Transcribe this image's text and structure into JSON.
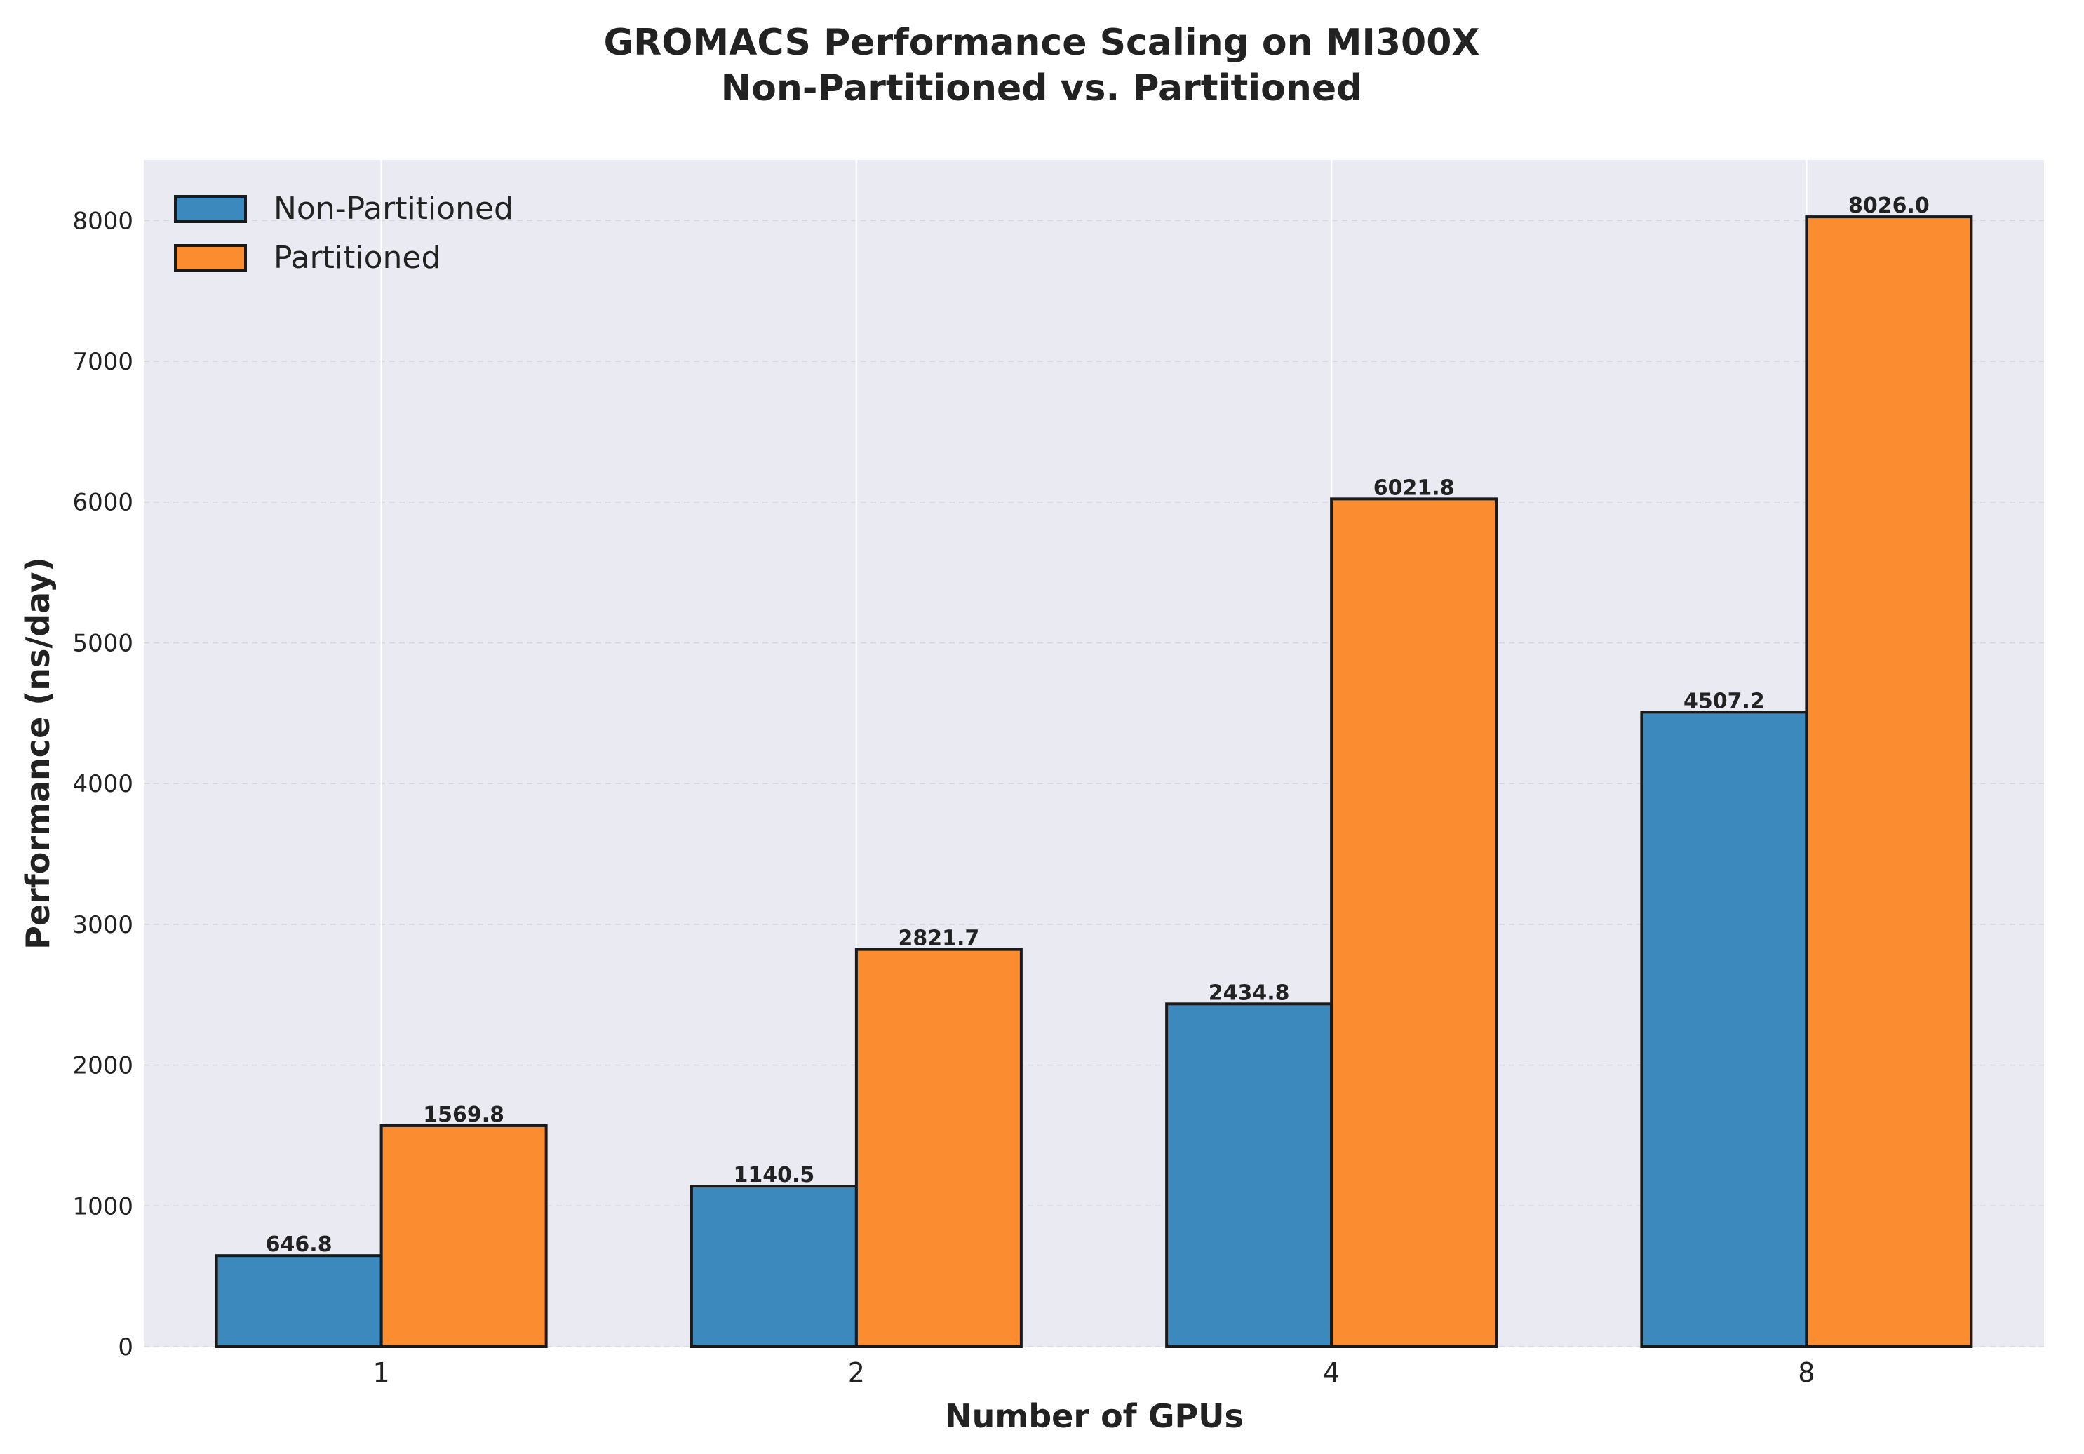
{
  "chart_data": {
    "type": "bar",
    "title_line1": "GROMACS Performance Scaling on MI300X",
    "title_line2": "Non-Partitioned vs. Partitioned",
    "xlabel": "Number of GPUs",
    "ylabel": "Performance (ns/day)",
    "categories": [
      "1",
      "2",
      "4",
      "8"
    ],
    "series": [
      {
        "name": "Non-Partitioned",
        "color": "#3c89bd",
        "values": [
          646.8,
          1140.5,
          2434.8,
          4507.2
        ],
        "labels": [
          "646.8",
          "1140.5",
          "2434.8",
          "4507.2"
        ]
      },
      {
        "name": "Partitioned",
        "color": "#fb8d30",
        "values": [
          1569.8,
          2821.7,
          6021.8,
          8026.0
        ],
        "labels": [
          "1569.8",
          "2821.7",
          "6021.8",
          "8026.0"
        ]
      }
    ],
    "ylim": [
      0,
      8430
    ],
    "yticks": [
      0,
      1000,
      2000,
      3000,
      4000,
      5000,
      6000,
      7000,
      8000
    ],
    "grid": true,
    "legend": "top-left",
    "plot_background": "#eaeaf2"
  }
}
